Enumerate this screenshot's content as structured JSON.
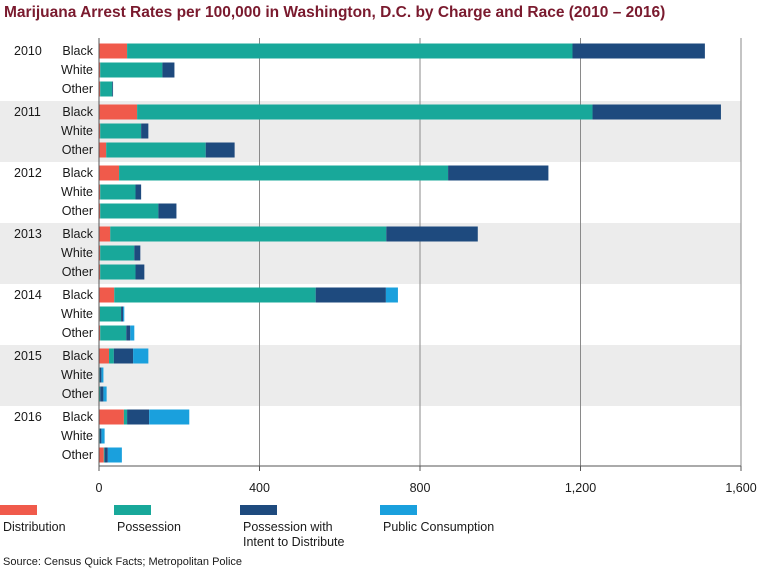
{
  "chart_data": {
    "type": "bar",
    "orientation": "horizontal",
    "stacked": true,
    "title": "Marijuana Arrest Rates per 100,000 in Washington, D.C. by Charge and Race (2010 – 2016)",
    "source": "Source: Census Quick Facts; Metropolitan Police",
    "xlim": [
      0,
      1600
    ],
    "x_ticks": [
      0,
      400,
      800,
      1200,
      1600
    ],
    "x_tick_labels": [
      "0",
      "400",
      "800",
      "1,200",
      "1,600"
    ],
    "grid": true,
    "legend_position": "bottom",
    "series": [
      {
        "name": "Distribution",
        "color": "#f05a4b"
      },
      {
        "name": "Possession",
        "color": "#18a89a"
      },
      {
        "name": "Possession with Intent to Distribute",
        "label_lines": [
          "Possession with",
          "Intent to Distribute"
        ],
        "color": "#1e4a7e"
      },
      {
        "name": "Public Consumption",
        "color": "#1aa0dd"
      }
    ],
    "groups": [
      {
        "year": "2010",
        "shaded": false,
        "rows": [
          {
            "race": "Black",
            "values": [
              70,
              1110,
              330,
              0
            ]
          },
          {
            "race": "White",
            "values": [
              3,
              155,
              30,
              0
            ]
          },
          {
            "race": "Other",
            "values": [
              3,
              30,
              2,
              0
            ]
          }
        ]
      },
      {
        "year": "2011",
        "shaded": true,
        "rows": [
          {
            "race": "Black",
            "values": [
              95,
              1135,
              320,
              0
            ]
          },
          {
            "race": "White",
            "values": [
              3,
              102,
              18,
              0
            ]
          },
          {
            "race": "Other",
            "values": [
              18,
              248,
              72,
              0
            ]
          }
        ]
      },
      {
        "year": "2012",
        "shaded": false,
        "rows": [
          {
            "race": "Black",
            "values": [
              50,
              820,
              250,
              0
            ]
          },
          {
            "race": "White",
            "values": [
              3,
              88,
              14,
              0
            ]
          },
          {
            "race": "Other",
            "values": [
              3,
              145,
              45,
              0
            ]
          }
        ]
      },
      {
        "year": "2013",
        "shaded": true,
        "rows": [
          {
            "race": "Black",
            "values": [
              28,
              688,
              228,
              0
            ]
          },
          {
            "race": "White",
            "values": [
              3,
              85,
              15,
              0
            ]
          },
          {
            "race": "Other",
            "values": [
              3,
              88,
              22,
              0
            ]
          }
        ]
      },
      {
        "year": "2014",
        "shaded": false,
        "rows": [
          {
            "race": "Black",
            "values": [
              38,
              502,
              175,
              30
            ]
          },
          {
            "race": "White",
            "values": [
              2,
              53,
              5,
              3
            ]
          },
          {
            "race": "Other",
            "values": [
              3,
              65,
              10,
              10
            ]
          }
        ]
      },
      {
        "year": "2015",
        "shaded": true,
        "rows": [
          {
            "race": "Black",
            "values": [
              25,
              12,
              48,
              38
            ]
          },
          {
            "race": "White",
            "values": [
              0,
              2,
              4,
              5
            ]
          },
          {
            "race": "Other",
            "values": [
              0,
              3,
              8,
              8
            ]
          }
        ]
      },
      {
        "year": "2016",
        "shaded": false,
        "rows": [
          {
            "race": "Black",
            "values": [
              62,
              8,
              55,
              100
            ]
          },
          {
            "race": "White",
            "values": [
              0,
              2,
              4,
              8
            ]
          },
          {
            "race": "Other",
            "values": [
              12,
              2,
              8,
              35
            ]
          }
        ]
      }
    ]
  }
}
